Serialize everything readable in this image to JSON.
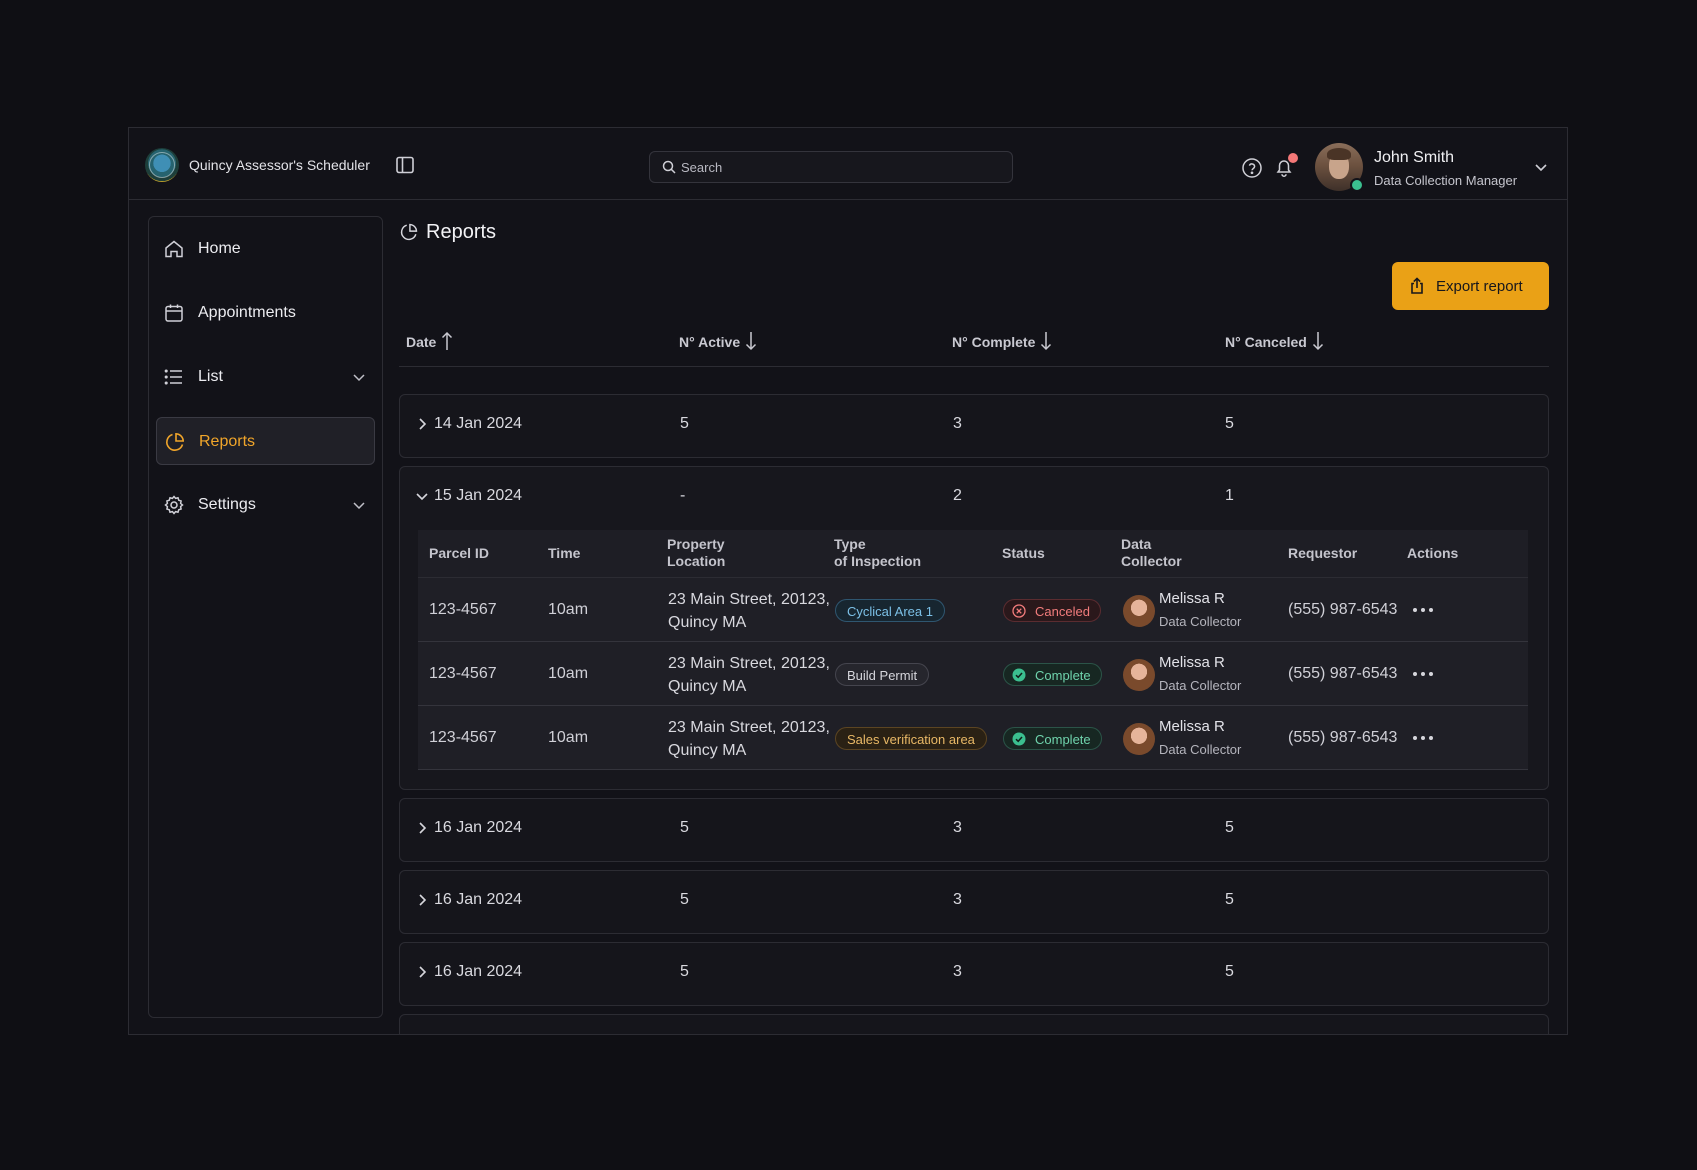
{
  "app": {
    "title": "Quincy Assessor's Scheduler",
    "search_placeholder": "Search"
  },
  "user": {
    "name": "John Smith",
    "role": "Data Collection Manager"
  },
  "sidebar": {
    "items": [
      {
        "label": "Home",
        "icon": "home-icon",
        "active": false,
        "has_chevron": false
      },
      {
        "label": "Appointments",
        "icon": "calendar-icon",
        "active": false,
        "has_chevron": false
      },
      {
        "label": "List",
        "icon": "list-icon",
        "active": false,
        "has_chevron": true
      },
      {
        "label": "Reports",
        "icon": "pie-chart-icon",
        "active": true,
        "has_chevron": false
      },
      {
        "label": "Settings",
        "icon": "gear-icon",
        "active": false,
        "has_chevron": true
      }
    ]
  },
  "page": {
    "title": "Reports",
    "export_label": "Export report"
  },
  "summary_columns": [
    {
      "label": "Date",
      "sort": "asc"
    },
    {
      "label": "N° Active",
      "sort": "desc"
    },
    {
      "label": "N° Complete",
      "sort": "desc"
    },
    {
      "label": "N° Canceled",
      "sort": "desc"
    }
  ],
  "groups": [
    {
      "date": "14 Jan 2024",
      "active": "5",
      "complete": "3",
      "canceled": "5",
      "expanded": false
    },
    {
      "date": "15 Jan 2024",
      "active": "-",
      "complete": "2",
      "canceled": "1",
      "expanded": true
    },
    {
      "date": "16 Jan 2024",
      "active": "5",
      "complete": "3",
      "canceled": "5",
      "expanded": false
    },
    {
      "date": "16 Jan 2024",
      "active": "5",
      "complete": "3",
      "canceled": "5",
      "expanded": false
    },
    {
      "date": "16 Jan 2024",
      "active": "5",
      "complete": "3",
      "canceled": "5",
      "expanded": false
    }
  ],
  "detail_columns": [
    {
      "line1": "Parcel ID",
      "line2": ""
    },
    {
      "line1": "Time",
      "line2": ""
    },
    {
      "line1": "Property",
      "line2": "Location"
    },
    {
      "line1": "Type",
      "line2": "of Inspection"
    },
    {
      "line1": "Status",
      "line2": ""
    },
    {
      "line1": "Data",
      "line2": "Collector"
    },
    {
      "line1": "Requestor",
      "line2": ""
    },
    {
      "line1": "Actions",
      "line2": ""
    }
  ],
  "detail_rows": [
    {
      "parcel_id": "123-4567",
      "time": "10am",
      "location_line1": "23 Main Street, 20123,",
      "location_line2": "Quincy MA",
      "inspection_type": "Cyclical Area 1",
      "inspection_style": "blue",
      "status": "Canceled",
      "status_kind": "canceled",
      "collector_name": "Melissa R",
      "collector_role": "Data Collector",
      "requestor": "(555) 987-6543"
    },
    {
      "parcel_id": "123-4567",
      "time": "10am",
      "location_line1": "23 Main Street, 20123,",
      "location_line2": "Quincy MA",
      "inspection_type": "Build Permit",
      "inspection_style": "gray",
      "status": "Complete",
      "status_kind": "complete",
      "collector_name": "Melissa R",
      "collector_role": "Data Collector",
      "requestor": "(555) 987-6543"
    },
    {
      "parcel_id": "123-4567",
      "time": "10am",
      "location_line1": "23 Main Street, 20123,",
      "location_line2": "Quincy MA",
      "inspection_type": "Sales verification area",
      "inspection_style": "amber",
      "status": "Complete",
      "status_kind": "complete",
      "collector_name": "Melissa R",
      "collector_role": "Data Collector",
      "requestor": "(555) 987-6543"
    }
  ],
  "colors": {
    "accent": "#eaa116",
    "active_nav": "#f0a52a",
    "complete": "#3bbf8f",
    "canceled": "#f27c7c",
    "tag_blue": "#6fb6de",
    "tag_amber": "#e3b15f"
  }
}
